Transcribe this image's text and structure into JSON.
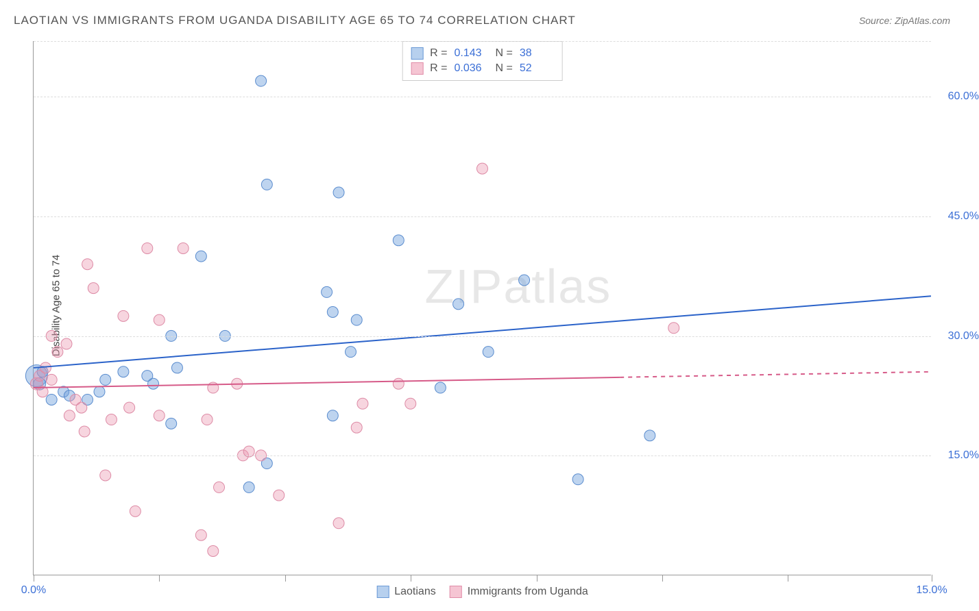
{
  "title": "LAOTIAN VS IMMIGRANTS FROM UGANDA DISABILITY AGE 65 TO 74 CORRELATION CHART",
  "source": "Source: ZipAtlas.com",
  "watermark": "ZIPatlas",
  "y_axis_label": "Disability Age 65 to 74",
  "chart": {
    "type": "scatter",
    "xlim": [
      0,
      15
    ],
    "ylim": [
      0,
      67
    ],
    "y_ticks": [
      15,
      30,
      45,
      60
    ],
    "y_tick_labels": [
      "15.0%",
      "30.0%",
      "45.0%",
      "60.0%"
    ],
    "x_tick_positions": [
      0,
      2.1,
      4.2,
      6.3,
      8.4,
      10.5,
      12.6,
      15
    ],
    "x_min_label": "0.0%",
    "x_max_label": "15.0%",
    "background_color": "#ffffff",
    "grid_color": "#dddddd",
    "axis_color": "#999999",
    "tick_label_color_blue": "#3b6fd6",
    "label_fontsize": 15,
    "tick_fontsize": 16
  },
  "series": [
    {
      "name": "Laotians",
      "color_fill": "rgba(110,160,220,0.45)",
      "color_stroke": "#5a8cce",
      "swatch_fill": "#b7d0ee",
      "swatch_stroke": "#6a99d6",
      "R": "0.143",
      "N": "38",
      "trend": {
        "x1": 0,
        "y1": 26,
        "x2": 15,
        "y2": 35,
        "solid_to_x": 15,
        "color": "#2a62c9",
        "width": 2
      },
      "points": [
        {
          "x": 0.05,
          "y": 25,
          "r": 16
        },
        {
          "x": 0.1,
          "y": 24,
          "r": 9
        },
        {
          "x": 0.15,
          "y": 25.5,
          "r": 8
        },
        {
          "x": 0.3,
          "y": 22,
          "r": 8
        },
        {
          "x": 0.5,
          "y": 23,
          "r": 8
        },
        {
          "x": 0.6,
          "y": 22.5,
          "r": 8
        },
        {
          "x": 0.9,
          "y": 22,
          "r": 8
        },
        {
          "x": 1.1,
          "y": 23,
          "r": 8
        },
        {
          "x": 1.2,
          "y": 24.5,
          "r": 8
        },
        {
          "x": 1.5,
          "y": 25.5,
          "r": 8
        },
        {
          "x": 1.9,
          "y": 25,
          "r": 8
        },
        {
          "x": 2.0,
          "y": 24,
          "r": 8
        },
        {
          "x": 2.3,
          "y": 19,
          "r": 8
        },
        {
          "x": 2.3,
          "y": 30,
          "r": 8
        },
        {
          "x": 2.4,
          "y": 26,
          "r": 8
        },
        {
          "x": 2.8,
          "y": 40,
          "r": 8
        },
        {
          "x": 3.2,
          "y": 30,
          "r": 8
        },
        {
          "x": 3.6,
          "y": 11,
          "r": 8
        },
        {
          "x": 3.8,
          "y": 62,
          "r": 8
        },
        {
          "x": 3.9,
          "y": 49,
          "r": 8
        },
        {
          "x": 3.9,
          "y": 14,
          "r": 8
        },
        {
          "x": 4.9,
          "y": 35.5,
          "r": 8
        },
        {
          "x": 5.0,
          "y": 20,
          "r": 8
        },
        {
          "x": 5.0,
          "y": 33,
          "r": 8
        },
        {
          "x": 5.1,
          "y": 48,
          "r": 8
        },
        {
          "x": 5.3,
          "y": 28,
          "r": 8
        },
        {
          "x": 5.4,
          "y": 32,
          "r": 8
        },
        {
          "x": 6.1,
          "y": 42,
          "r": 8
        },
        {
          "x": 6.8,
          "y": 23.5,
          "r": 8
        },
        {
          "x": 7.1,
          "y": 34,
          "r": 8
        },
        {
          "x": 7.6,
          "y": 28,
          "r": 8
        },
        {
          "x": 8.2,
          "y": 37,
          "r": 8
        },
        {
          "x": 9.1,
          "y": 12,
          "r": 8
        },
        {
          "x": 10.3,
          "y": 17.5,
          "r": 8
        }
      ]
    },
    {
      "name": "Immigrants from Uganda",
      "color_fill": "rgba(235,150,175,0.40)",
      "color_stroke": "#dd8aa5",
      "swatch_fill": "#f5c5d3",
      "swatch_stroke": "#e08ca8",
      "R": "0.036",
      "N": "52",
      "trend": {
        "x1": 0,
        "y1": 23.5,
        "x2": 15,
        "y2": 25.5,
        "solid_to_x": 9.8,
        "color": "#d65a88",
        "width": 2
      },
      "points": [
        {
          "x": 0.05,
          "y": 24,
          "r": 9
        },
        {
          "x": 0.1,
          "y": 25,
          "r": 8
        },
        {
          "x": 0.15,
          "y": 23,
          "r": 8
        },
        {
          "x": 0.2,
          "y": 26,
          "r": 8
        },
        {
          "x": 0.3,
          "y": 24.5,
          "r": 8
        },
        {
          "x": 0.3,
          "y": 30,
          "r": 8
        },
        {
          "x": 0.4,
          "y": 28,
          "r": 8
        },
        {
          "x": 0.55,
          "y": 29,
          "r": 8
        },
        {
          "x": 0.6,
          "y": 20,
          "r": 8
        },
        {
          "x": 0.7,
          "y": 22,
          "r": 8
        },
        {
          "x": 0.8,
          "y": 21,
          "r": 8
        },
        {
          "x": 0.85,
          "y": 18,
          "r": 8
        },
        {
          "x": 0.9,
          "y": 39,
          "r": 8
        },
        {
          "x": 1.0,
          "y": 36,
          "r": 8
        },
        {
          "x": 1.2,
          "y": 12.5,
          "r": 8
        },
        {
          "x": 1.3,
          "y": 19.5,
          "r": 8
        },
        {
          "x": 1.5,
          "y": 32.5,
          "r": 8
        },
        {
          "x": 1.6,
          "y": 21,
          "r": 8
        },
        {
          "x": 1.7,
          "y": 8,
          "r": 8
        },
        {
          "x": 1.9,
          "y": 41,
          "r": 8
        },
        {
          "x": 2.1,
          "y": 20,
          "r": 8
        },
        {
          "x": 2.1,
          "y": 32,
          "r": 8
        },
        {
          "x": 2.5,
          "y": 41,
          "r": 8
        },
        {
          "x": 2.8,
          "y": 5,
          "r": 8
        },
        {
          "x": 2.9,
          "y": 19.5,
          "r": 8
        },
        {
          "x": 3.0,
          "y": 23.5,
          "r": 8
        },
        {
          "x": 3.0,
          "y": 3,
          "r": 8
        },
        {
          "x": 3.1,
          "y": 11,
          "r": 8
        },
        {
          "x": 3.4,
          "y": 24,
          "r": 8
        },
        {
          "x": 3.5,
          "y": 15,
          "r": 8
        },
        {
          "x": 3.6,
          "y": 15.5,
          "r": 8
        },
        {
          "x": 3.8,
          "y": 15,
          "r": 8
        },
        {
          "x": 4.1,
          "y": 10,
          "r": 8
        },
        {
          "x": 5.1,
          "y": 6.5,
          "r": 8
        },
        {
          "x": 5.4,
          "y": 18.5,
          "r": 8
        },
        {
          "x": 5.5,
          "y": 21.5,
          "r": 8
        },
        {
          "x": 6.1,
          "y": 24,
          "r": 8
        },
        {
          "x": 6.3,
          "y": 21.5,
          "r": 8
        },
        {
          "x": 7.5,
          "y": 51,
          "r": 8
        },
        {
          "x": 10.7,
          "y": 31,
          "r": 8
        }
      ]
    }
  ]
}
